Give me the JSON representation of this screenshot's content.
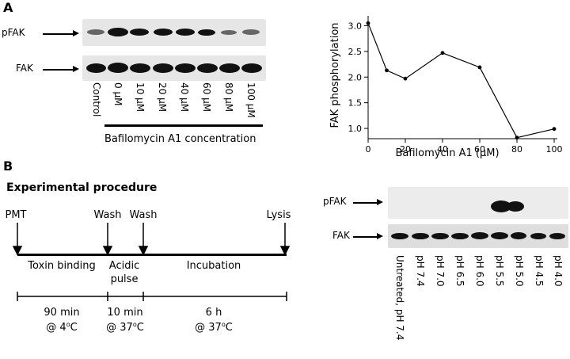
{
  "panelA": {
    "letter": "A",
    "blot": {
      "pfak_label": "pFAK",
      "fak_label": "FAK",
      "lanes": [
        "Control",
        "0 μM",
        "10 μM",
        "20 μM",
        "40 μM",
        "60 μM",
        "80 μM",
        "100 μM"
      ],
      "group_label": "Bafilomycin A1 concentration"
    }
  },
  "chart_data": {
    "type": "line",
    "x": [
      0,
      10,
      20,
      40,
      60,
      80,
      100
    ],
    "y": [
      3.05,
      2.13,
      1.97,
      2.47,
      2.19,
      0.82,
      0.99
    ],
    "xticks": [
      "0",
      "20",
      "40",
      "60",
      "80",
      "100"
    ],
    "yticks": [
      "1.0",
      "1.5",
      "2.0",
      "2.5",
      "3.0"
    ],
    "xlabel": "Bafilomycin A1 (μM)",
    "ylabel": "FAK phosphorylation",
    "xlim": [
      0,
      100
    ],
    "ylim": [
      0.8,
      3.1
    ],
    "grid": false
  },
  "panelB": {
    "letter": "B",
    "procedure": {
      "title": "Experimental procedure",
      "events": [
        "PMT",
        "Wash",
        "Wash",
        "Lysis"
      ],
      "phases": [
        "Toxin binding",
        "Acidic",
        "pulse",
        "Incubation"
      ],
      "times": [
        {
          "duration": "90 min",
          "temp": "@ 4",
          "unit": "C"
        },
        {
          "duration": "10 min",
          "temp": "@ 37",
          "unit": "C"
        },
        {
          "duration": "6 h",
          "temp": "@ 37",
          "unit": "C"
        }
      ],
      "degree": "o"
    },
    "blot": {
      "pfak_label": "pFAK",
      "fak_label": "FAK",
      "lanes": [
        "Untreated, pH 7.4",
        "pH 7.4",
        "pH 7.0",
        "pH 6.5",
        "pH 6.0",
        "pH 5.5",
        "pH 5.0",
        "pH 4.5",
        "pH 4.0"
      ]
    }
  }
}
